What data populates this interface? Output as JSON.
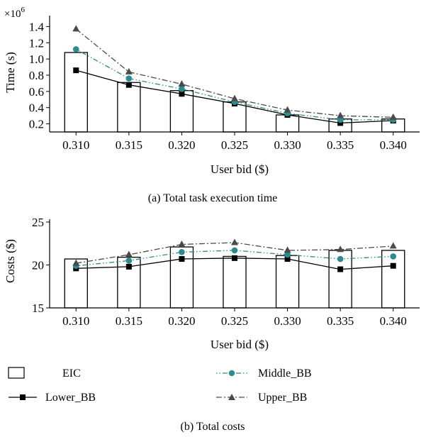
{
  "chart_data": [
    {
      "type": "bar",
      "caption": "(a)  Total task execution time",
      "categories": [
        "0.310",
        "0.315",
        "0.320",
        "0.325",
        "0.330",
        "0.335",
        "0.340"
      ],
      "xlabel": "User bid ($)",
      "ylabel": "Time (s)",
      "y_multiplier": "×10",
      "y_multiplier_exp": "6",
      "ylim": [
        0.1,
        1.5
      ],
      "yticks": [
        0.2,
        0.4,
        0.6,
        0.8,
        1.0,
        1.2,
        1.4
      ],
      "ytick_labels": [
        "0.2",
        "0.4",
        "0.6",
        "0.8",
        "1.0",
        "1.2",
        "1.4"
      ],
      "grid": false,
      "series": [
        {
          "name": "EIC",
          "kind": "bar",
          "values": [
            1.08,
            0.71,
            0.61,
            0.47,
            0.31,
            0.26,
            0.26
          ]
        },
        {
          "name": "Lower_BB",
          "kind": "line",
          "values": [
            0.86,
            0.68,
            0.57,
            0.45,
            0.31,
            0.21,
            0.24
          ]
        },
        {
          "name": "Middle_BB",
          "kind": "line",
          "values": [
            1.12,
            0.76,
            0.63,
            0.47,
            0.33,
            0.25,
            0.25
          ]
        },
        {
          "name": "Upper_BB",
          "kind": "line",
          "values": [
            1.37,
            0.84,
            0.69,
            0.51,
            0.37,
            0.3,
            0.28
          ]
        }
      ]
    },
    {
      "type": "bar",
      "caption": "(b)  Total costs",
      "categories": [
        "0.310",
        "0.315",
        "0.320",
        "0.325",
        "0.330",
        "0.335",
        "0.340"
      ],
      "xlabel": "User bid ($)",
      "ylabel": "Costs ($)",
      "ylim": [
        15,
        25
      ],
      "yticks": [
        15,
        20,
        25
      ],
      "ytick_labels": [
        "15",
        "20",
        "25"
      ],
      "grid": false,
      "series": [
        {
          "name": "EIC",
          "kind": "bar",
          "values": [
            20.7,
            20.9,
            22.1,
            21.0,
            21.1,
            21.7,
            21.7
          ]
        },
        {
          "name": "Lower_BB",
          "kind": "line",
          "values": [
            19.6,
            19.8,
            20.7,
            20.8,
            20.7,
            19.5,
            19.9
          ]
        },
        {
          "name": "Middle_BB",
          "kind": "line",
          "values": [
            19.9,
            20.5,
            21.5,
            21.7,
            21.2,
            20.7,
            21.0
          ]
        },
        {
          "name": "Upper_BB",
          "kind": "line",
          "values": [
            20.2,
            21.2,
            22.4,
            22.6,
            21.7,
            21.8,
            22.2
          ]
        }
      ]
    }
  ],
  "legend": {
    "placement": "bottom",
    "items": [
      {
        "name": "EIC",
        "style": "box"
      },
      {
        "name": "Middle_BB",
        "style": "dotdot-circle"
      },
      {
        "name": "Lower_BB",
        "style": "solid-square"
      },
      {
        "name": "Upper_BB",
        "style": "dashdot-triangle"
      }
    ]
  },
  "colors": {
    "lower": "#000000",
    "middle": "#2a8c8c",
    "upper": "#4a4a4a",
    "bar_edge": "#000000"
  }
}
